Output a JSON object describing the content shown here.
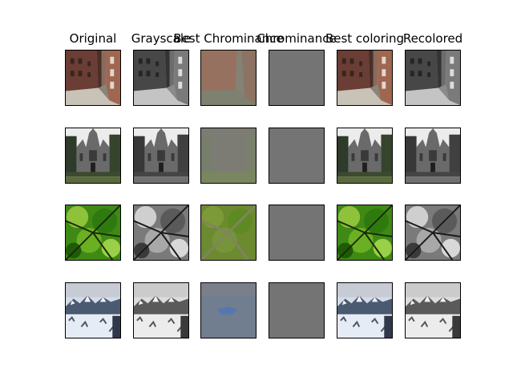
{
  "columns": [
    {
      "title": "Original"
    },
    {
      "title": "Grayscale"
    },
    {
      "title": "Best Chrominance"
    },
    {
      "title": "Chrominance"
    },
    {
      "title": "Best coloring"
    },
    {
      "title": "Recolored"
    }
  ],
  "rows": [
    {
      "scene": "alley-street"
    },
    {
      "scene": "gothic-cathedral"
    },
    {
      "scene": "tree-canopy"
    },
    {
      "scene": "snowy-mountains"
    }
  ],
  "colors": {
    "chrominance_flat": "#747474",
    "best_chroma_alley": "#8a7a6e",
    "best_chroma_cathedral": "#7c7c72",
    "best_chroma_trees": "#6f8a35",
    "best_chroma_mountains": "#717f91"
  }
}
